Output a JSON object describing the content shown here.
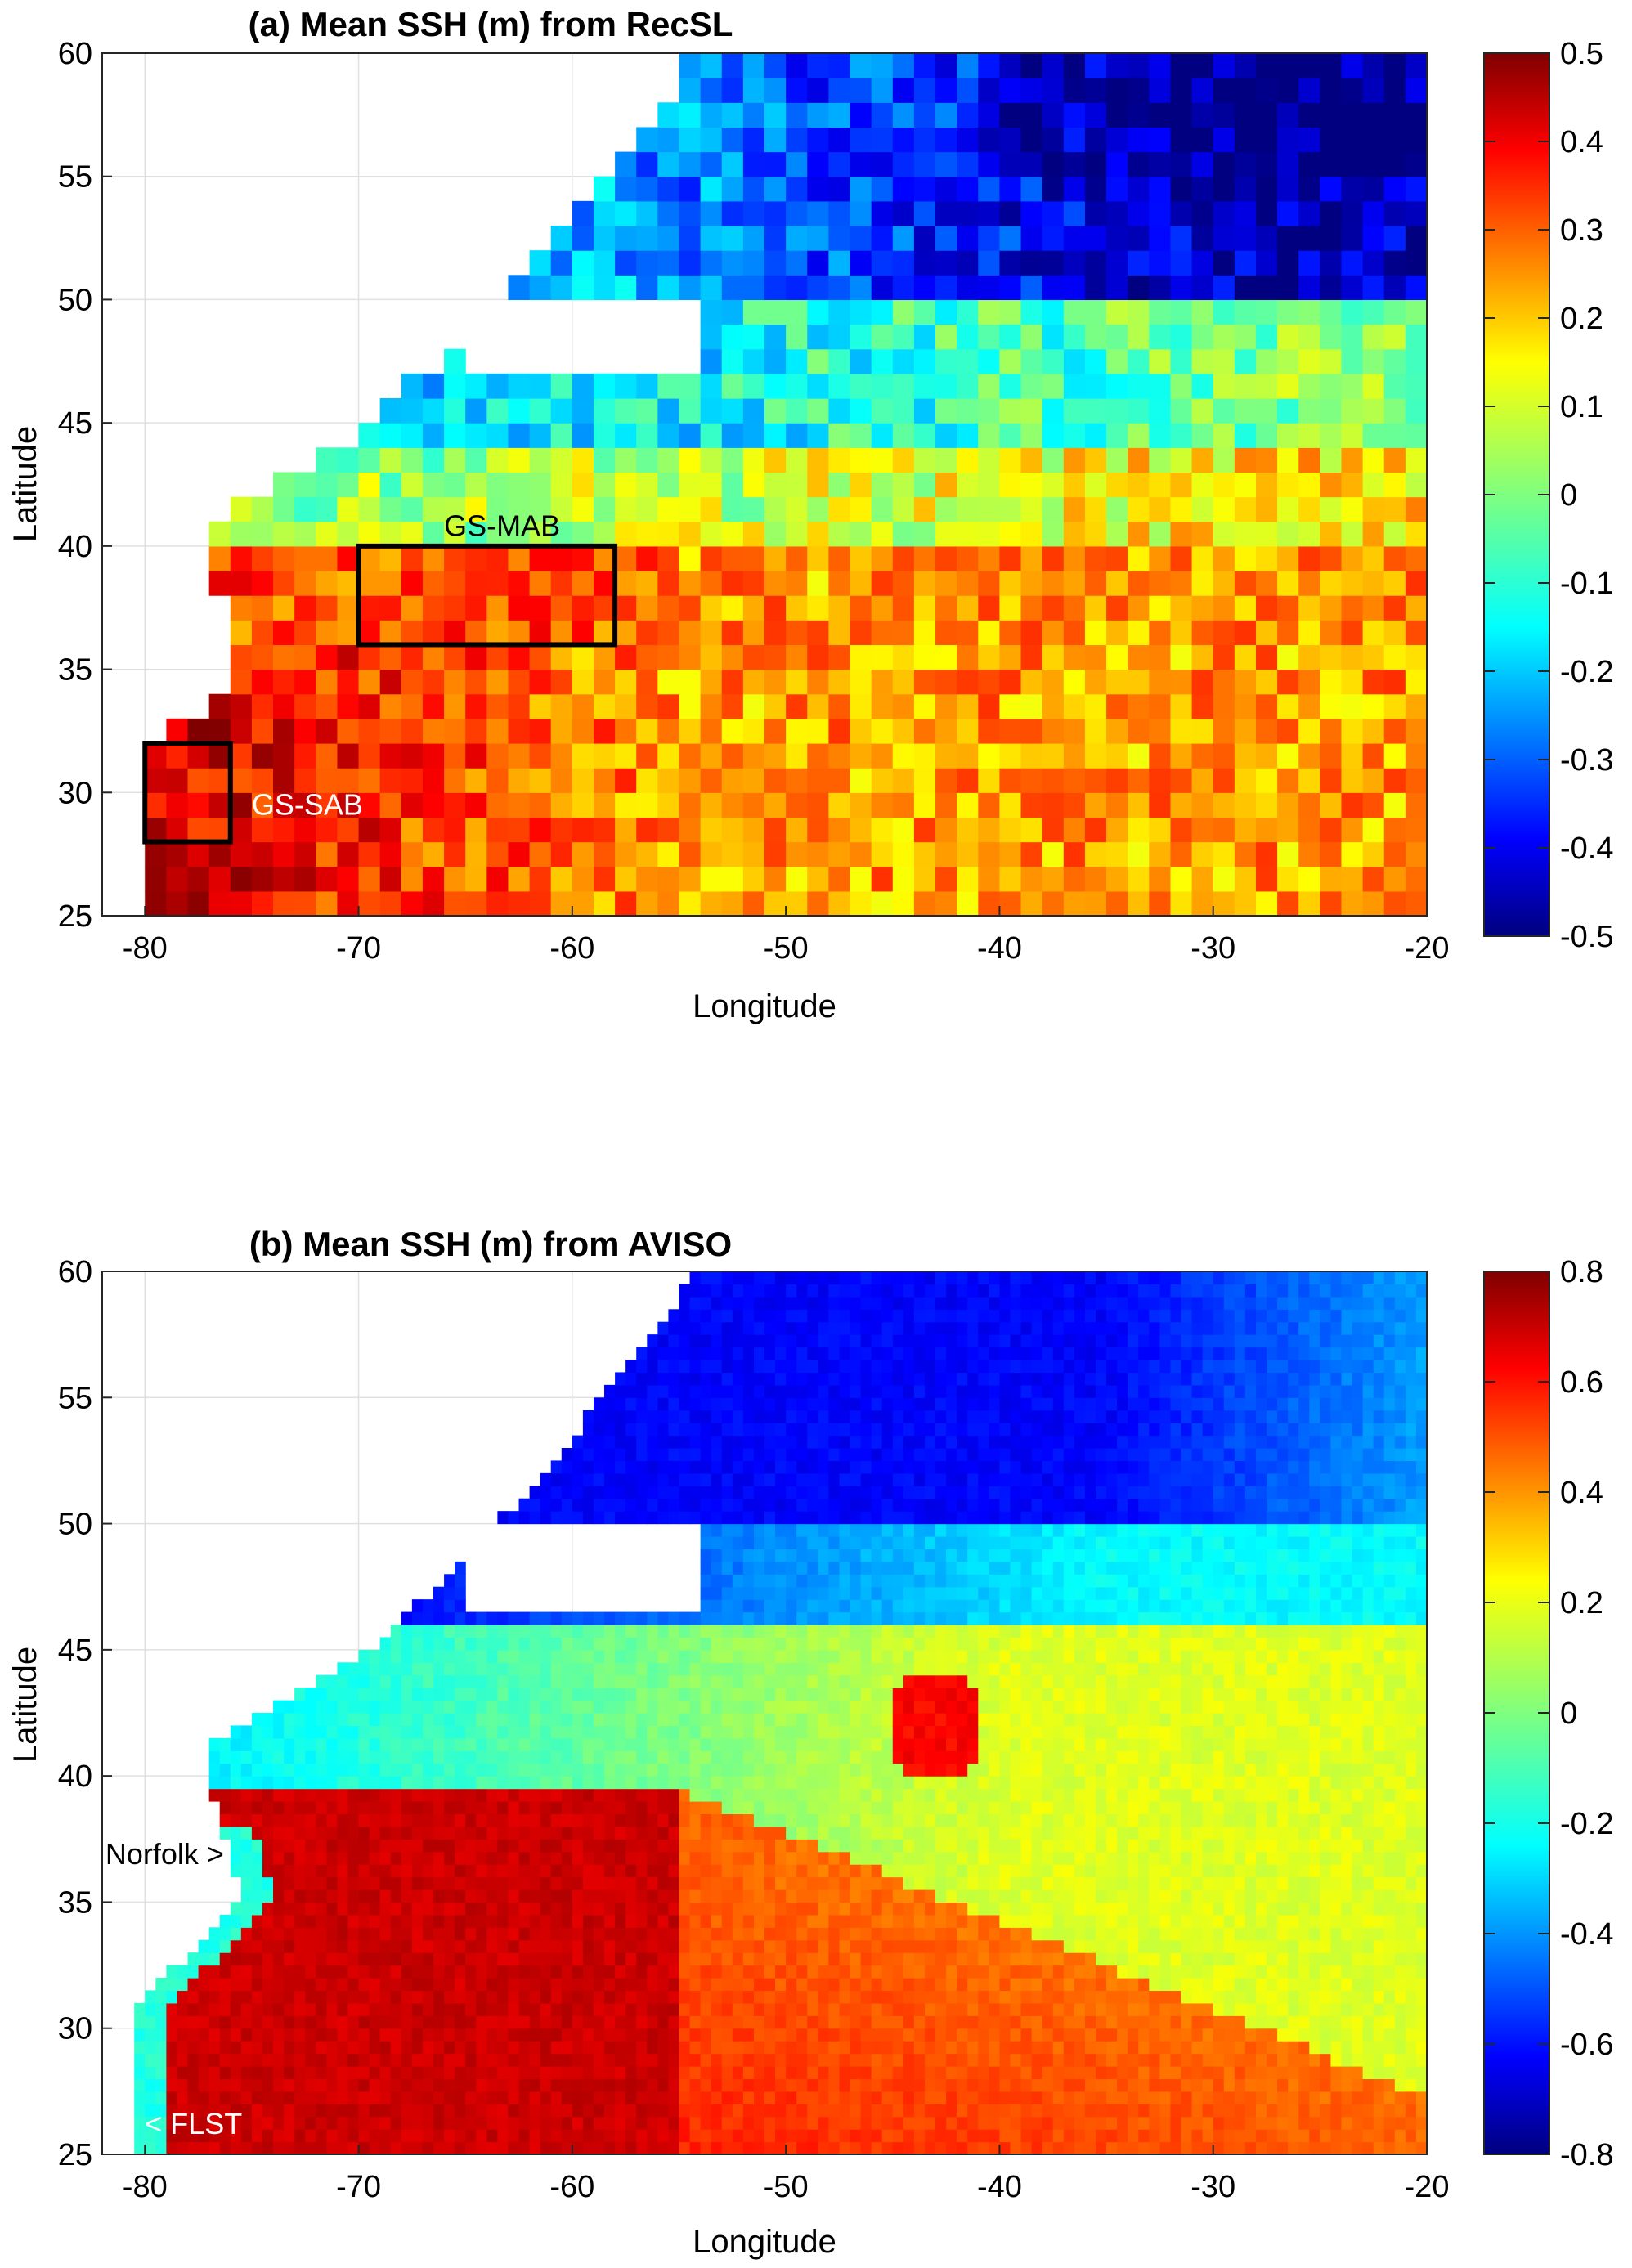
{
  "chart_data": [
    {
      "type": "heatmap",
      "panel": "a",
      "title": "(a) Mean SSH (m) from RecSL",
      "xlabel": "Longitude",
      "ylabel": "Latitude",
      "xlim": [
        -82,
        -20
      ],
      "ylim": [
        25,
        60
      ],
      "xticks": [
        -80,
        -70,
        -60,
        -50,
        -40,
        -30,
        -20
      ],
      "yticks": [
        25,
        30,
        35,
        40,
        45,
        50,
        55,
        60
      ],
      "grid": true,
      "colormap": "jet",
      "clim": [
        -0.5,
        0.5
      ],
      "colorbar_ticks": [
        "0.5",
        "0.4",
        "0.3",
        "0.2",
        "0.1",
        "0",
        "-0.1",
        "-0.2",
        "-0.3",
        "-0.4",
        "-0.5"
      ],
      "field_description": "Gridded mean sea surface height at about 1 degree resolution; high values (0.3-0.5 m) south of the Gulf Stream near 25-36N west of -55, moderate values (0.1-0.3 m) across the eastern subtropics, near zero to -0.2 m north of about 40N, and lowest values (-0.3 to -0.5 m) in the subpolar gyre near 50-60N, -50 to -20. Land and no-data cells are blank.",
      "annotations": [
        {
          "text": "GS-MAB",
          "lon": -66,
          "lat": 40.8,
          "color": "#000000"
        },
        {
          "text": "GS-SAB",
          "lon": -75,
          "lat": 29.5,
          "color": "#ffffff"
        }
      ],
      "boxes": [
        {
          "name": "GS-MAB",
          "lon": [
            -70,
            -58
          ],
          "lat": [
            36,
            40
          ]
        },
        {
          "name": "GS-SAB",
          "lon": [
            -80,
            -76
          ],
          "lat": [
            28,
            32
          ]
        }
      ]
    },
    {
      "type": "heatmap",
      "panel": "b",
      "title": "(b) Mean SSH (m) from AVISO",
      "xlabel": "Longitude",
      "ylabel": "Latitude",
      "xlim": [
        -82,
        -20
      ],
      "ylim": [
        25,
        60
      ],
      "xticks": [
        -80,
        -70,
        -60,
        -50,
        -40,
        -30,
        -20
      ],
      "yticks": [
        25,
        30,
        35,
        40,
        45,
        50,
        55,
        60
      ],
      "grid": true,
      "colormap": "jet",
      "clim": [
        -0.8,
        0.8
      ],
      "colorbar_ticks": [
        "0.8",
        "0.6",
        "0.4",
        "0.2",
        "0",
        "-0.2",
        "-0.4",
        "-0.6",
        "-0.8"
      ],
      "field_description": "Mean sea surface height from altimetry: a sharp Gulf Stream front along the coast and near 38-41N, very high values (0.6-0.8 m) in the subtropical gyre at 27-38N west of -55, 0.3-0.5 m across the eastern subtropics, a warm eddy near -43,42N, and low values (-0.6 to -0.8 m) in the subpolar gyre at 50-60N. Land is blank.",
      "annotations": [
        {
          "text": "Norfolk >",
          "lon": -76.3,
          "lat": 36.9,
          "color": "#000000"
        },
        {
          "text": "< FLST",
          "lon": -80,
          "lat": 26.2,
          "color": "#ffffff"
        }
      ]
    }
  ]
}
